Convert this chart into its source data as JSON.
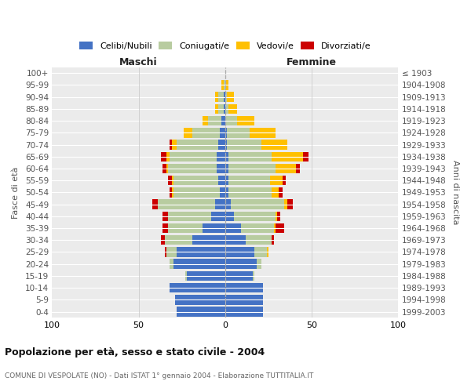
{
  "age_groups": [
    "0-4",
    "5-9",
    "10-14",
    "15-19",
    "20-24",
    "25-29",
    "30-34",
    "35-39",
    "40-44",
    "45-49",
    "50-54",
    "55-59",
    "60-64",
    "65-69",
    "70-74",
    "75-79",
    "80-84",
    "85-89",
    "90-94",
    "95-99",
    "100+"
  ],
  "birth_years": [
    "1999-2003",
    "1994-1998",
    "1989-1993",
    "1984-1988",
    "1979-1983",
    "1974-1978",
    "1969-1973",
    "1964-1968",
    "1959-1963",
    "1954-1958",
    "1949-1953",
    "1944-1948",
    "1939-1943",
    "1934-1938",
    "1929-1933",
    "1924-1928",
    "1919-1923",
    "1914-1918",
    "1909-1913",
    "1904-1908",
    "≤ 1903"
  ],
  "maschi": {
    "celibi": [
      28,
      29,
      32,
      22,
      30,
      28,
      19,
      13,
      8,
      6,
      3,
      4,
      5,
      5,
      4,
      3,
      2,
      1,
      1,
      0,
      0
    ],
    "coniugati": [
      0,
      0,
      0,
      1,
      2,
      6,
      16,
      20,
      25,
      33,
      27,
      26,
      28,
      27,
      24,
      16,
      8,
      3,
      3,
      1,
      0
    ],
    "vedovi": [
      0,
      0,
      0,
      0,
      0,
      0,
      0,
      0,
      0,
      0,
      1,
      1,
      1,
      2,
      3,
      5,
      3,
      2,
      2,
      1,
      0
    ],
    "divorziati": [
      0,
      0,
      0,
      0,
      0,
      1,
      2,
      3,
      3,
      3,
      1,
      2,
      2,
      3,
      1,
      0,
      0,
      0,
      0,
      0,
      0
    ]
  },
  "femmine": {
    "nubili": [
      22,
      22,
      22,
      16,
      18,
      17,
      12,
      9,
      5,
      3,
      2,
      2,
      2,
      2,
      1,
      1,
      0,
      0,
      0,
      0,
      0
    ],
    "coniugate": [
      0,
      0,
      0,
      1,
      3,
      7,
      15,
      19,
      24,
      31,
      25,
      24,
      27,
      25,
      20,
      13,
      7,
      2,
      1,
      0,
      0
    ],
    "vedove": [
      0,
      0,
      0,
      0,
      0,
      1,
      0,
      1,
      1,
      2,
      4,
      7,
      12,
      18,
      15,
      15,
      10,
      5,
      4,
      2,
      0
    ],
    "divorziate": [
      0,
      0,
      0,
      0,
      0,
      0,
      1,
      5,
      2,
      3,
      2,
      2,
      2,
      3,
      0,
      0,
      0,
      0,
      0,
      0,
      0
    ]
  },
  "colors": {
    "celibi": "#4472c4",
    "coniugati": "#b8cca0",
    "vedovi": "#ffc000",
    "divorziati": "#cc0000"
  },
  "xlim": 100,
  "title": "Popolazione per età, sesso e stato civile - 2004",
  "subtitle": "COMUNE DI VESPOLATE (NO) - Dati ISTAT 1° gennaio 2004 - Elaborazione TUTTITALIA.IT",
  "ylabel": "Fasce di età",
  "ylabel_right": "Anni di nascita",
  "legend_labels": [
    "Celibi/Nubili",
    "Coniugati/e",
    "Vedovi/e",
    "Divorziati/e"
  ],
  "maschi_label": "Maschi",
  "femmine_label": "Femmine"
}
